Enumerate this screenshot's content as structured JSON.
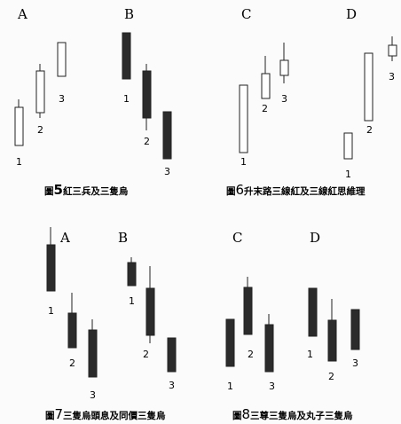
{
  "figures": [
    {
      "caption": {
        "prefix": "圖",
        "number": "5",
        "text": "紅三兵及三隻烏"
      },
      "groups": [
        {
          "letter": "A",
          "candles": [
            {
              "label": "1"
            },
            {
              "label": "2"
            },
            {
              "label": "3"
            }
          ]
        },
        {
          "letter": "B",
          "candles": [
            {
              "label": "1"
            },
            {
              "label": "2"
            },
            {
              "label": "3"
            }
          ]
        }
      ]
    },
    {
      "caption": {
        "prefix": "圖",
        "number": "6",
        "text": "升末路三線紅及三線紅思維理"
      },
      "groups": [
        {
          "letter": "C",
          "candles": [
            {
              "label": "1"
            },
            {
              "label": "2"
            },
            {
              "label": "3"
            }
          ]
        },
        {
          "letter": "D",
          "candles": [
            {
              "label": "1"
            },
            {
              "label": "2"
            },
            {
              "label": "3"
            }
          ]
        }
      ]
    },
    {
      "caption": {
        "prefix": "圖",
        "number": "7",
        "text": "三隻烏頭息及同價三隻烏"
      },
      "groups": [
        {
          "letter": "A",
          "candles": [
            {
              "label": "1"
            },
            {
              "label": "2"
            },
            {
              "label": "3"
            }
          ]
        },
        {
          "letter": "B",
          "candles": [
            {
              "label": "1"
            },
            {
              "label": "2"
            },
            {
              "label": "3"
            }
          ]
        }
      ]
    },
    {
      "caption": {
        "prefix": "圖",
        "number": "8",
        "text": "三尊三隻烏及丸子三隻烏"
      },
      "groups": [
        {
          "letter": "C",
          "candles": [
            {
              "label": "1"
            },
            {
              "label": "2"
            },
            {
              "label": "3"
            }
          ]
        },
        {
          "letter": "D",
          "candles": [
            {
              "label": "1"
            },
            {
              "label": "2"
            },
            {
              "label": "3"
            }
          ]
        }
      ]
    }
  ],
  "colors": {
    "bullish_fill": "#ffffff",
    "bearish_fill": "#2b2b2b",
    "stroke": "#222222"
  }
}
